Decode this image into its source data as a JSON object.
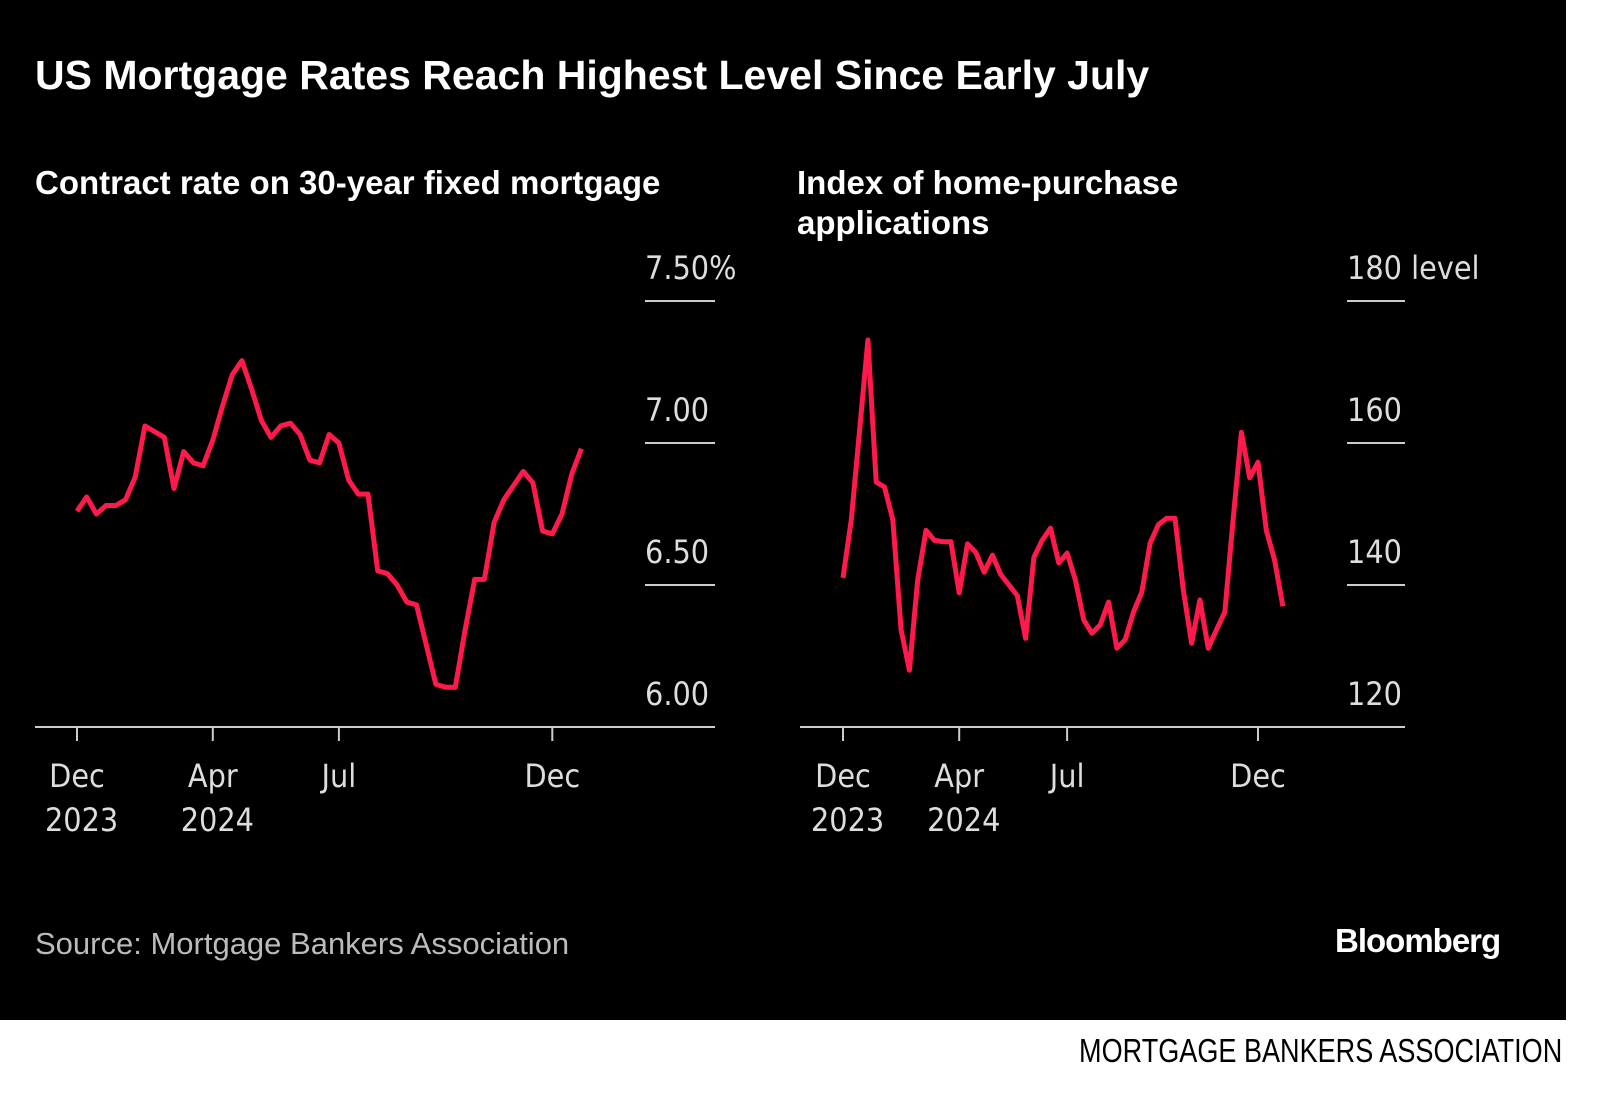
{
  "title": "US Mortgage Rates Reach Highest Level Since Early July",
  "source": "Source: Mortgage Bankers Association",
  "brand": "Bloomberg",
  "credit": "MORTGAGE BANKERS ASSOCIATION",
  "chart_data": [
    {
      "type": "line",
      "title": "Contract rate on 30-year fixed mortgage",
      "color": "#ff1a4b",
      "categories": [
        "Dec 2023",
        null,
        null,
        null,
        null,
        null,
        null,
        null,
        null,
        null,
        null,
        null,
        null,
        null,
        "Apr 2024",
        null,
        null,
        null,
        null,
        null,
        null,
        null,
        null,
        null,
        null,
        null,
        null,
        "Jul",
        null,
        null,
        null,
        null,
        null,
        null,
        null,
        null,
        null,
        null,
        null,
        null,
        null,
        null,
        null,
        null,
        null,
        null,
        null,
        null,
        null,
        "Dec",
        null,
        null,
        null
      ],
      "values": [
        6.76,
        6.81,
        6.75,
        6.78,
        6.78,
        6.8,
        6.88,
        7.06,
        7.04,
        7.02,
        6.84,
        6.97,
        6.93,
        6.92,
        7.01,
        7.13,
        7.24,
        7.29,
        7.19,
        7.08,
        7.02,
        7.06,
        7.07,
        7.03,
        6.94,
        6.93,
        7.03,
        7.0,
        6.87,
        6.82,
        6.82,
        6.55,
        6.54,
        6.5,
        6.44,
        6.43,
        6.29,
        6.15,
        6.14,
        6.14,
        6.34,
        6.52,
        6.52,
        6.72,
        6.8,
        6.85,
        6.9,
        6.86,
        6.69,
        6.68,
        6.75,
        6.89,
        6.98
      ],
      "ylim": [
        6,
        7.5
      ],
      "yticks": [
        {
          "value": 6,
          "label": "6.00"
        },
        {
          "value": 6.5,
          "label": "6.50"
        },
        {
          "value": 7,
          "label": "7.00"
        },
        {
          "value": 7.5,
          "label": "7.50%"
        }
      ]
    },
    {
      "type": "line",
      "title": "Index of home-purchase applications",
      "color": "#ff1a4b",
      "categories": [
        "Dec 2023",
        null,
        null,
        null,
        null,
        null,
        null,
        null,
        null,
        null,
        null,
        null,
        null,
        null,
        "Apr 2024",
        null,
        null,
        null,
        null,
        null,
        null,
        null,
        null,
        null,
        null,
        null,
        null,
        "Jul",
        null,
        null,
        null,
        null,
        null,
        null,
        null,
        null,
        null,
        null,
        null,
        null,
        null,
        null,
        null,
        null,
        null,
        null,
        null,
        null,
        null,
        null,
        "Dec",
        null,
        null,
        null
      ],
      "values": [
        141.0,
        149.2,
        161.8,
        174.5,
        154.5,
        153.8,
        149.2,
        133.7,
        128.0,
        140.7,
        147.7,
        146.3,
        146.1,
        146.1,
        138.9,
        145.8,
        144.6,
        141.8,
        144.2,
        141.5,
        140.0,
        138.5,
        132.5,
        143.9,
        146.3,
        148.0,
        143.1,
        144.5,
        140.7,
        135.1,
        133.2,
        134.4,
        137.6,
        131.1,
        132.3,
        136.2,
        139.0,
        145.9,
        148.5,
        149.4,
        149.4,
        139.3,
        131.8,
        137.9,
        131.1,
        133.7,
        136.2,
        149.2,
        161.5,
        155.1,
        157.3,
        147.7,
        143.5,
        137.0
      ],
      "ylim": [
        120,
        180
      ],
      "yticks": [
        120,
        140,
        160,
        {
          "value": 180,
          "label": "180 level"
        }
      ]
    }
  ]
}
